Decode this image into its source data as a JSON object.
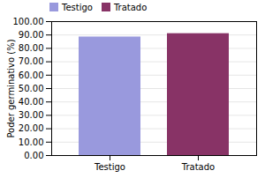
{
  "chart_data": {
    "type": "bar",
    "categories": [
      "Testigo",
      "Tratado"
    ],
    "values": [
      88.5,
      91.0
    ],
    "colors": [
      "#9999dd",
      "#883366"
    ],
    "ylabel": "Poder germinativo (%)",
    "ylim": [
      0,
      100
    ],
    "yticks": [
      {
        "value": 0,
        "label": "0.00"
      },
      {
        "value": 10,
        "label": "10.00"
      },
      {
        "value": 20,
        "label": "20.00"
      },
      {
        "value": 30,
        "label": "30.00"
      },
      {
        "value": 40,
        "label": "40.00"
      },
      {
        "value": 50,
        "label": "50.00"
      },
      {
        "value": 60,
        "label": "60.00"
      },
      {
        "value": 70,
        "label": "70.00"
      },
      {
        "value": 80,
        "label": "80.00"
      },
      {
        "value": 90,
        "label": "90.00"
      },
      {
        "value": 100,
        "label": "100.00"
      }
    ],
    "grid": true,
    "legend": "upper left"
  }
}
